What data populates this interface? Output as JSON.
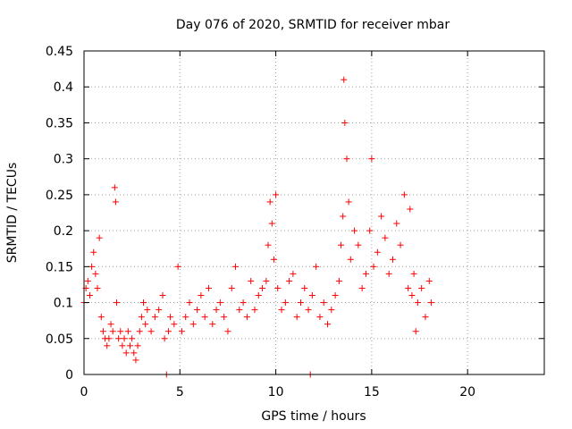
{
  "chart_data": {
    "type": "scatter",
    "title": "Day 076 of 2020, SRMTID for receiver mbar",
    "xlabel": "GPS time / hours",
    "ylabel": "SRMTID / TECUs",
    "xlim": [
      0,
      24
    ],
    "ylim": [
      0,
      0.45
    ],
    "x_ticks": [
      0,
      5,
      10,
      15,
      20
    ],
    "x_tick_labels": [
      "0",
      "5",
      "10",
      "15",
      "20"
    ],
    "y_ticks": [
      0,
      0.05,
      0.1,
      0.15,
      0.2,
      0.25,
      0.3,
      0.35,
      0.4,
      0.45
    ],
    "y_tick_labels": [
      "0",
      "0.05",
      "0.1",
      "0.15",
      "0.2",
      "0.25",
      "0.3",
      "0.35",
      "0.4",
      "0.45"
    ],
    "grid": true,
    "marker": "+",
    "series_color": "#ff0000",
    "series": [
      {
        "name": "SRMTID",
        "x": [
          0.0,
          0.1,
          0.2,
          0.3,
          0.4,
          0.5,
          0.6,
          0.7,
          0.8,
          0.9,
          1.0,
          1.1,
          1.2,
          1.3,
          1.4,
          1.5,
          1.6,
          1.65,
          1.7,
          1.8,
          1.9,
          2.0,
          2.1,
          2.2,
          2.3,
          2.4,
          2.5,
          2.6,
          2.7,
          2.8,
          2.9,
          3.0,
          3.1,
          3.2,
          3.3,
          3.5,
          3.7,
          3.9,
          4.1,
          4.2,
          4.3,
          4.4,
          4.5,
          4.7,
          4.9,
          5.1,
          5.3,
          5.5,
          5.7,
          5.9,
          6.1,
          6.3,
          6.5,
          6.7,
          6.9,
          7.1,
          7.3,
          7.5,
          7.7,
          7.9,
          8.1,
          8.3,
          8.5,
          8.7,
          8.9,
          9.1,
          9.3,
          9.5,
          9.6,
          9.7,
          9.8,
          9.9,
          10.0,
          10.1,
          10.3,
          10.5,
          10.7,
          10.9,
          11.1,
          11.3,
          11.5,
          11.7,
          11.8,
          11.9,
          12.1,
          12.3,
          12.5,
          12.7,
          12.9,
          13.1,
          13.3,
          13.4,
          13.5,
          13.55,
          13.6,
          13.7,
          13.8,
          13.9,
          14.1,
          14.3,
          14.5,
          14.7,
          14.9,
          15.0,
          15.1,
          15.3,
          15.5,
          15.7,
          15.9,
          16.1,
          16.3,
          16.5,
          16.7,
          16.9,
          17.0,
          17.1,
          17.2,
          17.3,
          17.4,
          17.6,
          17.8,
          18.0,
          18.1
        ],
        "y": [
          0.1,
          0.12,
          0.13,
          0.11,
          0.15,
          0.17,
          0.14,
          0.12,
          0.19,
          0.08,
          0.06,
          0.05,
          0.04,
          0.05,
          0.07,
          0.06,
          0.26,
          0.24,
          0.1,
          0.05,
          0.06,
          0.04,
          0.05,
          0.03,
          0.06,
          0.04,
          0.05,
          0.03,
          0.02,
          0.04,
          0.06,
          0.08,
          0.1,
          0.07,
          0.09,
          0.06,
          0.08,
          0.09,
          0.11,
          0.05,
          0.0,
          0.06,
          0.08,
          0.07,
          0.15,
          0.06,
          0.08,
          0.1,
          0.07,
          0.09,
          0.11,
          0.08,
          0.12,
          0.07,
          0.09,
          0.1,
          0.08,
          0.06,
          0.12,
          0.15,
          0.09,
          0.1,
          0.08,
          0.13,
          0.09,
          0.11,
          0.12,
          0.13,
          0.18,
          0.24,
          0.21,
          0.16,
          0.25,
          0.12,
          0.09,
          0.1,
          0.13,
          0.14,
          0.08,
          0.1,
          0.12,
          0.09,
          0.0,
          0.11,
          0.15,
          0.08,
          0.1,
          0.07,
          0.09,
          0.11,
          0.13,
          0.18,
          0.22,
          0.41,
          0.35,
          0.3,
          0.24,
          0.16,
          0.2,
          0.18,
          0.12,
          0.14,
          0.2,
          0.3,
          0.15,
          0.17,
          0.22,
          0.19,
          0.14,
          0.16,
          0.21,
          0.18,
          0.25,
          0.12,
          0.23,
          0.11,
          0.14,
          0.06,
          0.1,
          0.12,
          0.08,
          0.13,
          0.1
        ]
      }
    ]
  }
}
